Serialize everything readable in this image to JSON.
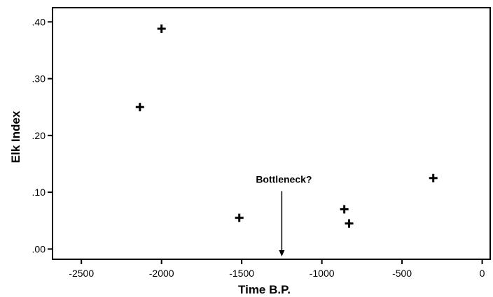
{
  "chart_data": {
    "type": "scatter",
    "xlabel": "Time B.P.",
    "ylabel": "Elk Index",
    "xlim": [
      -2680,
      50
    ],
    "ylim": [
      -0.018,
      0.425
    ],
    "xticks": [
      {
        "value": -2500,
        "label": "-2500"
      },
      {
        "value": -2000,
        "label": "-2000"
      },
      {
        "value": -1500,
        "label": "-1500"
      },
      {
        "value": -1000,
        "label": "-1000"
      },
      {
        "value": -500,
        "label": "-500"
      },
      {
        "value": 0,
        "label": "0"
      }
    ],
    "yticks": [
      {
        "value": 0.0,
        "label": ".00"
      },
      {
        "value": 0.1,
        "label": ".10"
      },
      {
        "value": 0.2,
        "label": ".20"
      },
      {
        "value": 0.3,
        "label": ".30"
      },
      {
        "value": 0.4,
        "label": ".40"
      }
    ],
    "points": [
      {
        "x": -2000,
        "y": 0.388
      },
      {
        "x": -2135,
        "y": 0.25
      },
      {
        "x": -1515,
        "y": 0.055
      },
      {
        "x": -860,
        "y": 0.07
      },
      {
        "x": -830,
        "y": 0.045
      },
      {
        "x": -305,
        "y": 0.125
      }
    ],
    "marker": "plus",
    "marker_color": "#000000",
    "grid": false,
    "annotations": [
      {
        "text": "Bottleneck?",
        "arrow_x": -1250,
        "arrow_y_from": 0.102,
        "arrow_y_to": -0.018
      }
    ]
  }
}
